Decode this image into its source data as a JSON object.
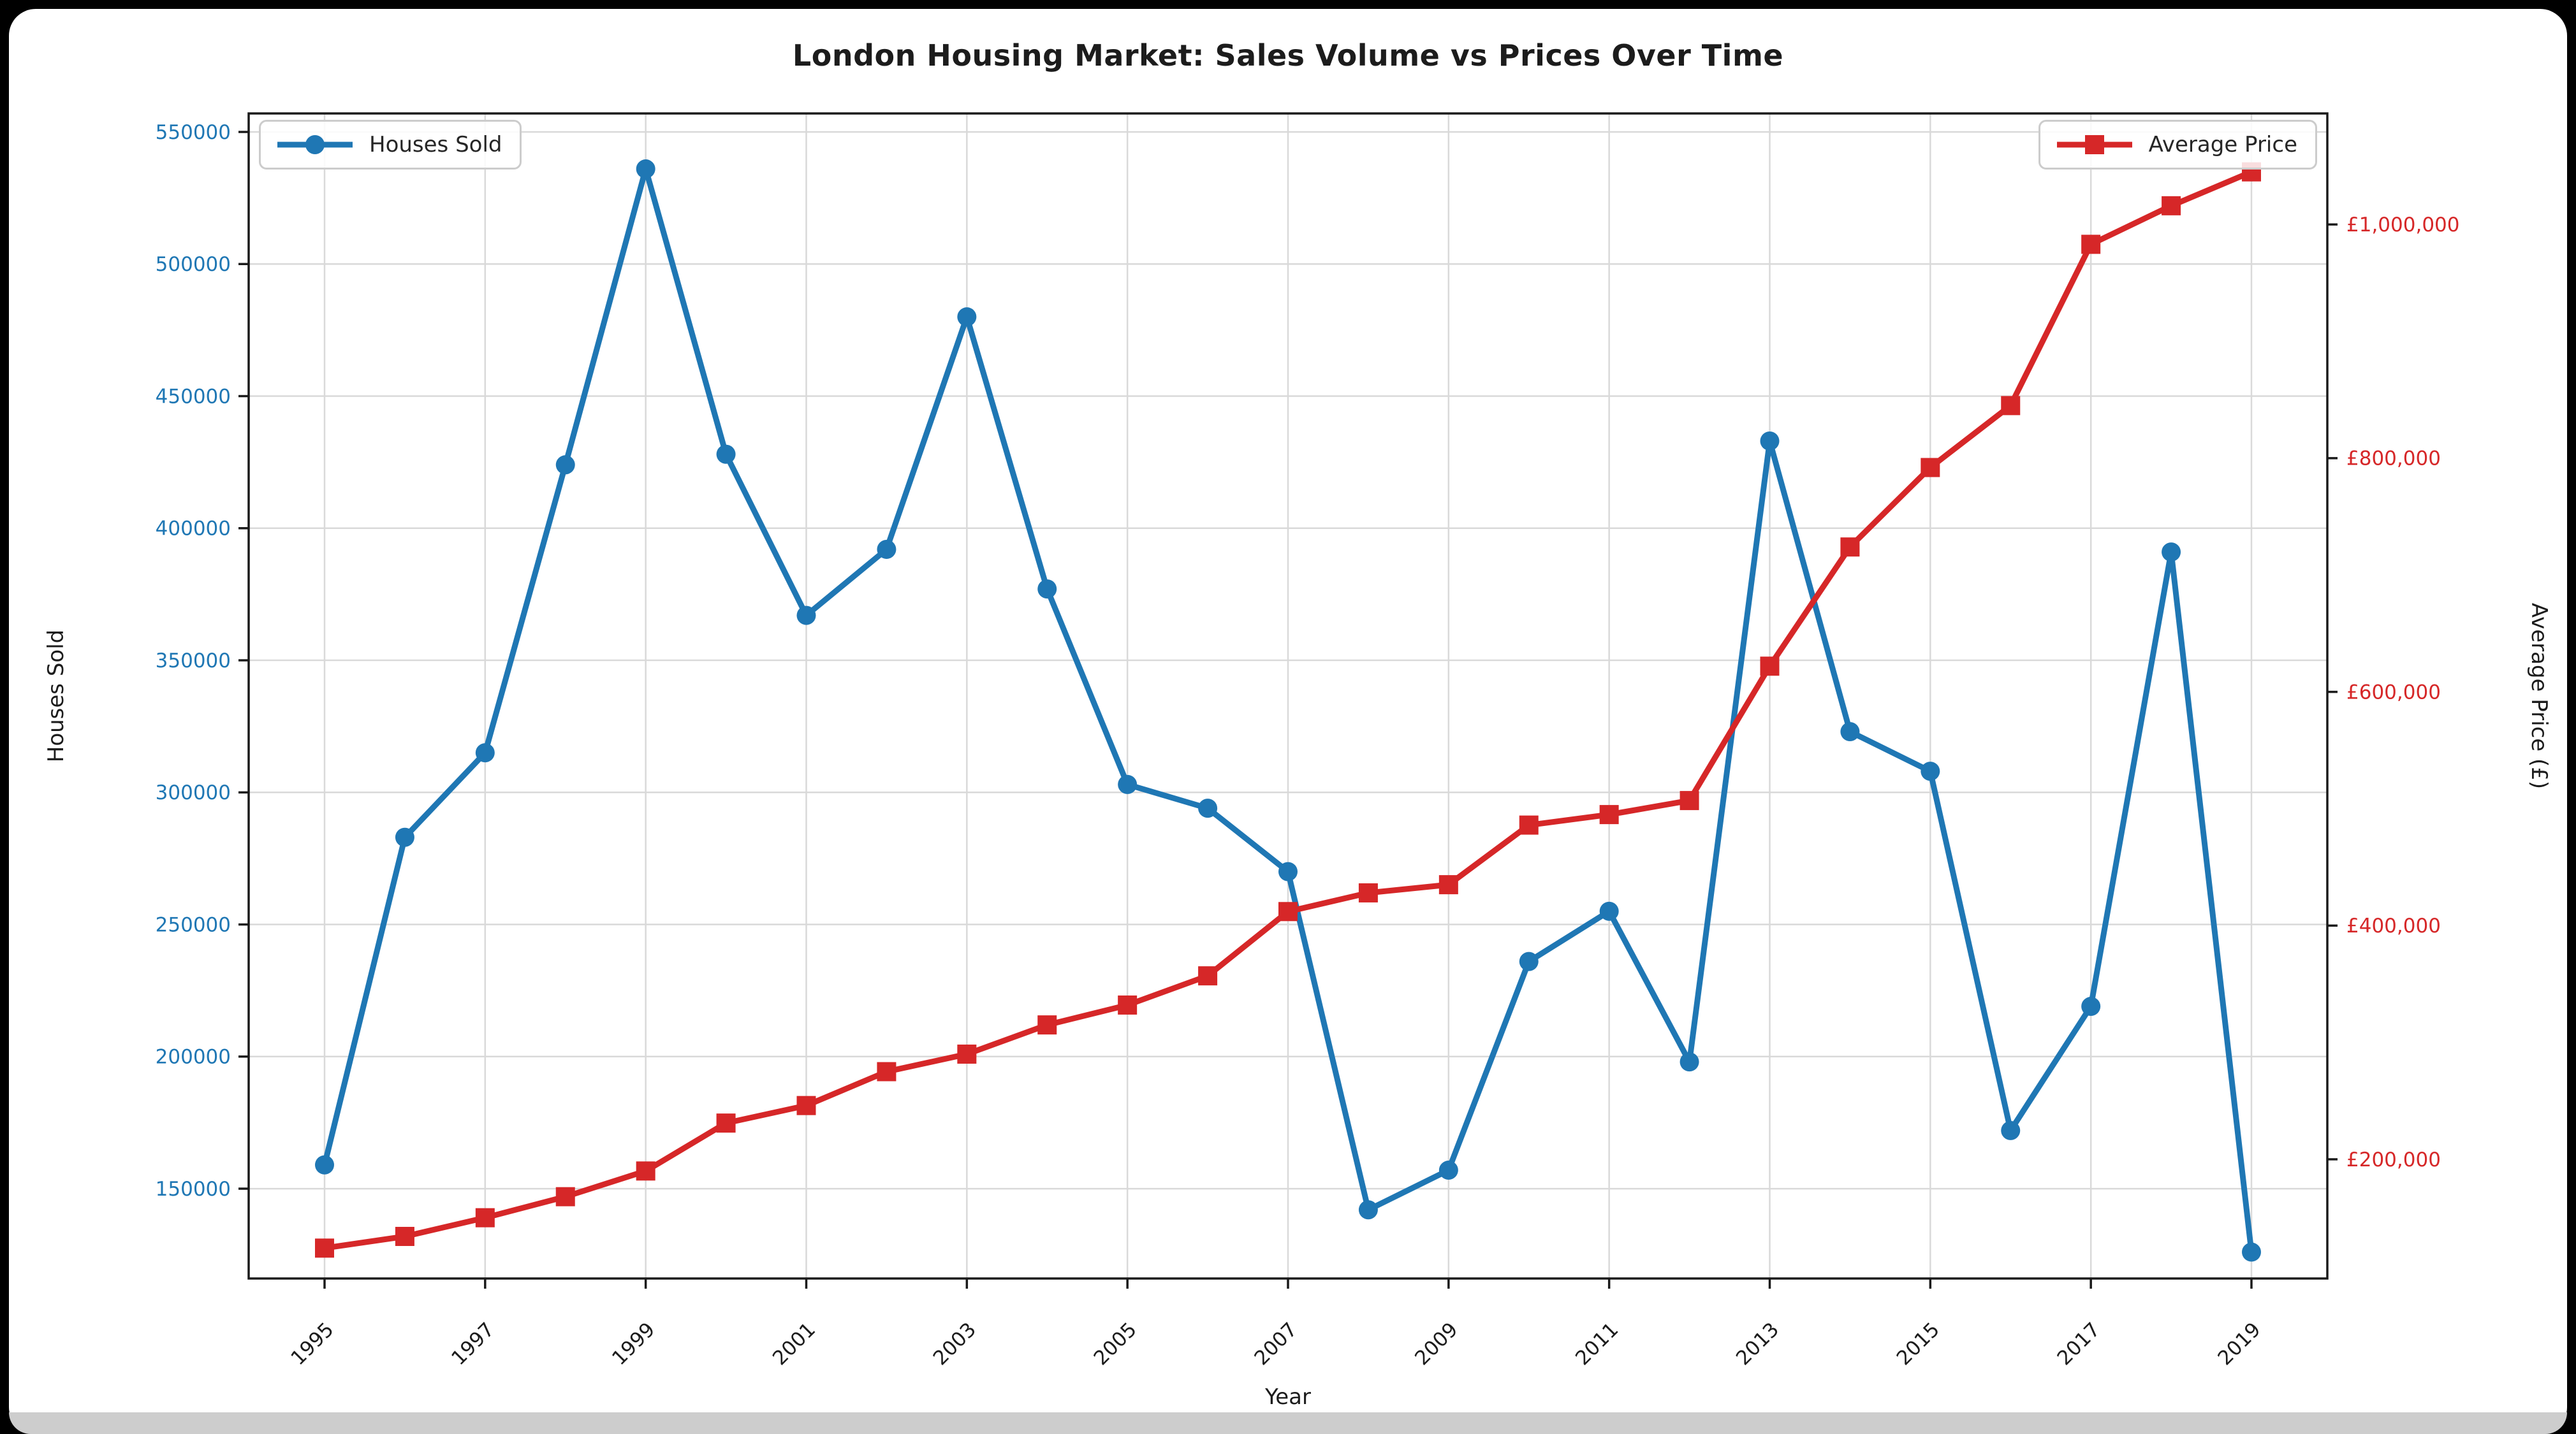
{
  "window": {
    "background": "#000000",
    "card_background": "#ffffff",
    "footer_color": "#cdcdcd"
  },
  "chart_data": {
    "type": "line",
    "title": "London Housing Market: Sales Volume vs Prices Over Time",
    "xlabel": "Year",
    "x": [
      1995,
      1996,
      1997,
      1998,
      1999,
      2000,
      2001,
      2002,
      2003,
      2004,
      2005,
      2006,
      2007,
      2008,
      2009,
      2010,
      2011,
      2012,
      2013,
      2014,
      2015,
      2016,
      2017,
      2018,
      2019
    ],
    "x_ticks": [
      1995,
      1997,
      1999,
      2001,
      2003,
      2005,
      2007,
      2009,
      2011,
      2013,
      2015,
      2017,
      2019
    ],
    "series": [
      {
        "name": "Houses Sold",
        "axis": "left",
        "color": "#1f77b4",
        "marker": "circle",
        "values": [
          159000,
          283000,
          315000,
          424000,
          536000,
          428000,
          367000,
          392000,
          480000,
          377000,
          303000,
          294000,
          270000,
          142000,
          157000,
          236000,
          255000,
          198000,
          433000,
          323000,
          308000,
          172000,
          219000,
          391000,
          126000
        ]
      },
      {
        "name": "Average Price",
        "axis": "right",
        "color": "#d62728",
        "marker": "square",
        "values": [
          124000,
          134000,
          150000,
          168000,
          190000,
          231000,
          246000,
          275000,
          290000,
          315000,
          332000,
          357000,
          412000,
          428000,
          435000,
          486000,
          495000,
          507000,
          622000,
          724000,
          792000,
          845000,
          983000,
          1016000,
          1045000
        ]
      }
    ],
    "axes": {
      "left": {
        "label": "Houses Sold",
        "color": "#1f77b4",
        "ticks": [
          150000,
          200000,
          250000,
          300000,
          350000,
          400000,
          450000,
          500000,
          550000
        ],
        "lim": [
          116000,
          557000
        ]
      },
      "right": {
        "label": "Average Price (£)",
        "color": "#d62728",
        "ticks": [
          200000,
          400000,
          600000,
          800000,
          1000000
        ],
        "tick_prefix": "£",
        "lim": [
          98000,
          1095000
        ]
      },
      "x": {
        "lim_years": [
          1995,
          2019
        ]
      }
    },
    "legend": [
      {
        "label": "Houses Sold",
        "position": "upper-left"
      },
      {
        "label": "Average Price",
        "position": "upper-right"
      }
    ],
    "grid": true,
    "grid_color": "#d9d9d9",
    "spine_color": "#1a1a1a",
    "tick_label_color_x": "#1c1c1c"
  }
}
